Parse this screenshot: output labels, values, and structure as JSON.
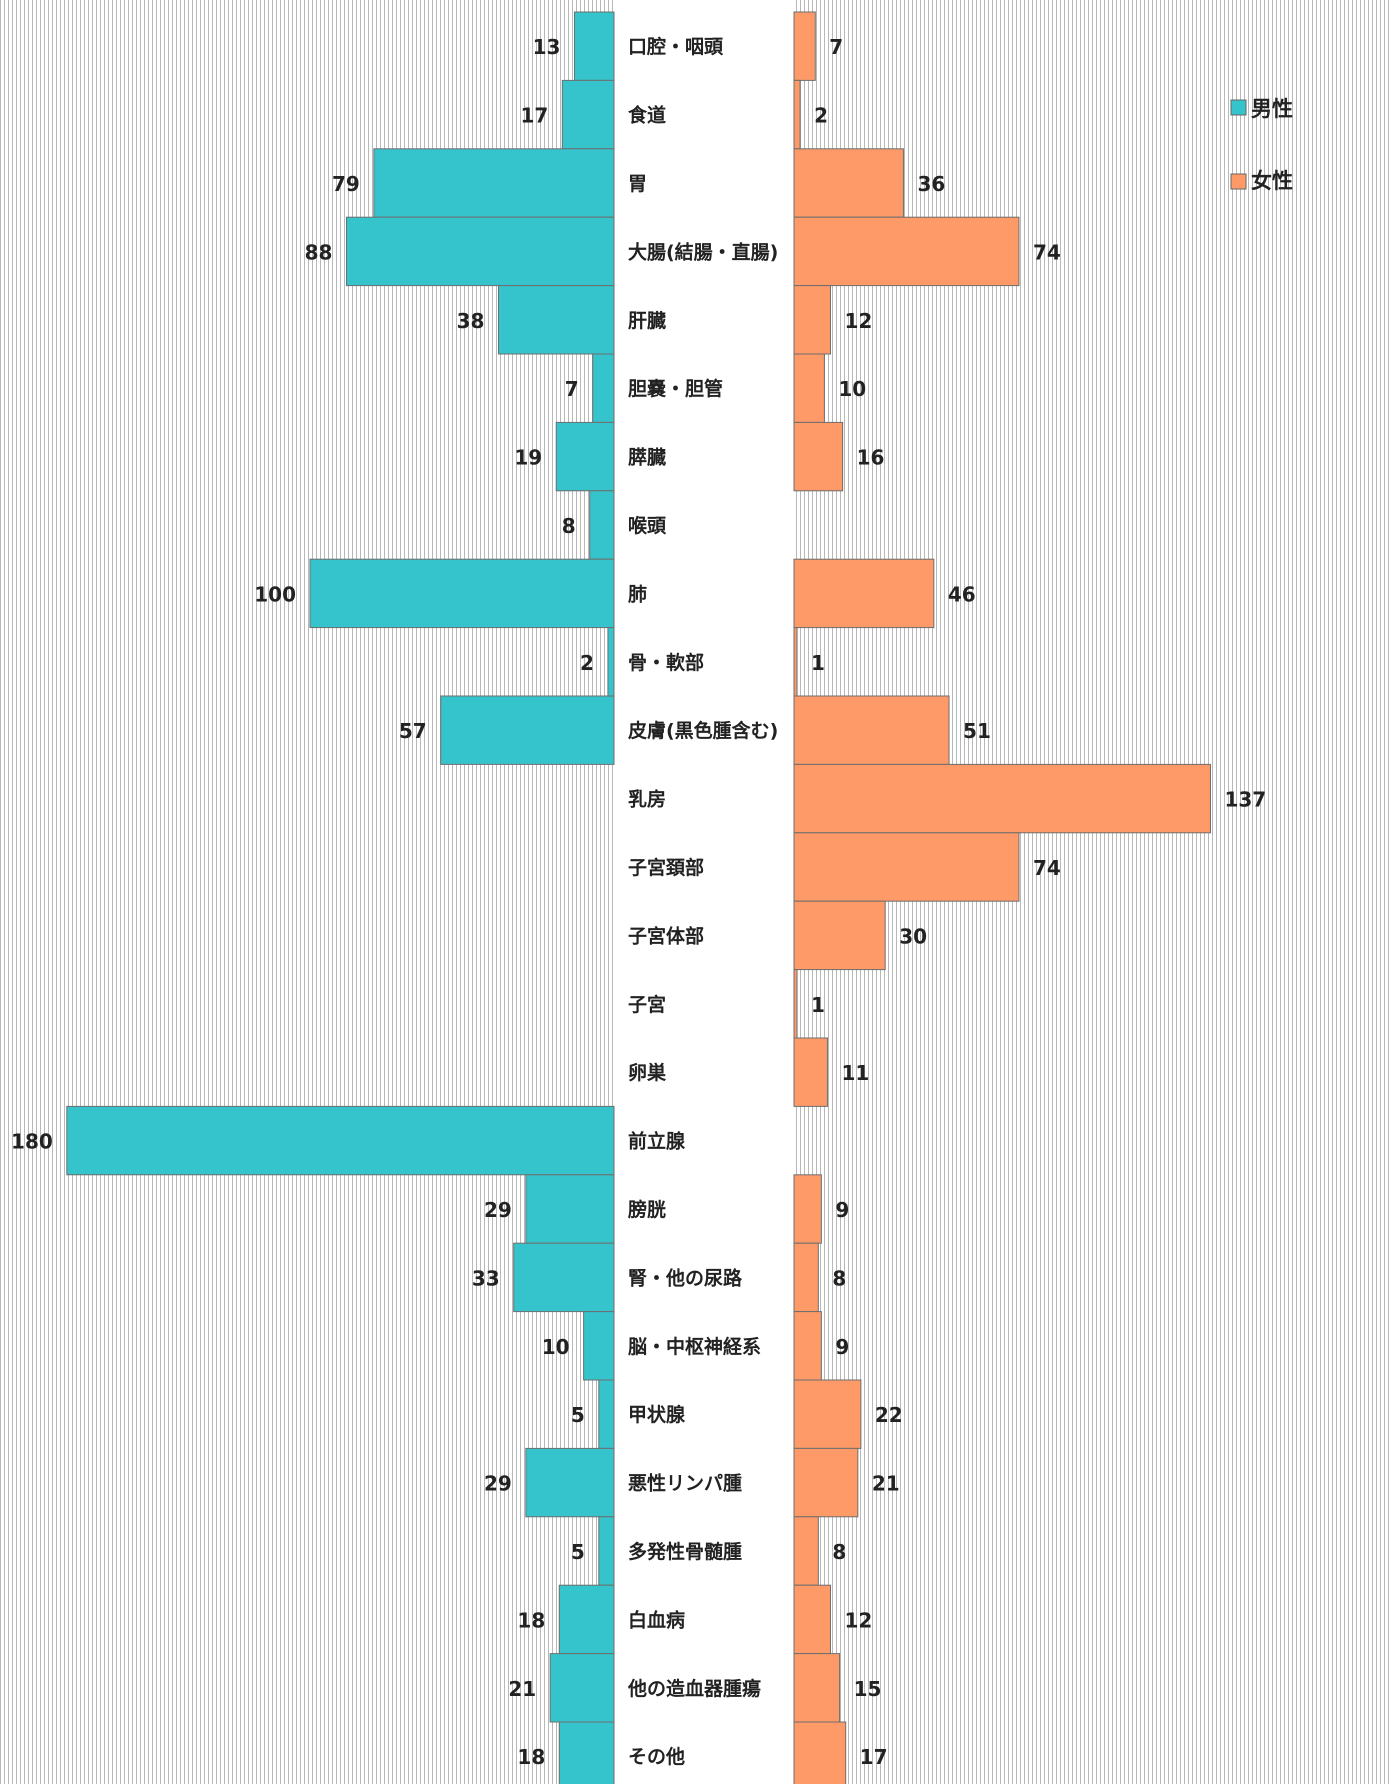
{
  "chart_data": {
    "type": "bar",
    "orientation": "horizontal",
    "layout": "butterfly",
    "categories": [
      "口腔・咽頭",
      "食道",
      "胃",
      "大腸(結腸・直腸)",
      "肝臓",
      "胆嚢・胆管",
      "膵臓",
      "喉頭",
      "肺",
      "骨・軟部",
      "皮膚(黒色腫含む)",
      "乳房",
      "子宮頚部",
      "子宮体部",
      "子宮",
      "卵巣",
      "前立腺",
      "膀胱",
      "腎・他の尿路",
      "脳・中枢神経系",
      "甲状腺",
      "悪性リンパ腫",
      "多発性骨髄腫",
      "白血病",
      "他の造血器腫瘍",
      "その他"
    ],
    "series": [
      {
        "name": "男性",
        "color": "#35c4cc",
        "values": [
          13,
          17,
          79,
          88,
          38,
          7,
          19,
          8,
          100,
          2,
          57,
          null,
          null,
          null,
          null,
          null,
          180,
          29,
          33,
          10,
          5,
          29,
          5,
          18,
          21,
          18
        ]
      },
      {
        "name": "女性",
        "color": "#fd9a67",
        "values": [
          7,
          2,
          36,
          74,
          12,
          10,
          16,
          null,
          46,
          1,
          51,
          137,
          74,
          30,
          1,
          11,
          null,
          9,
          8,
          9,
          22,
          21,
          8,
          12,
          15,
          17
        ]
      }
    ],
    "legend": "top-right",
    "background": "vertical-stripes",
    "grid": false
  }
}
